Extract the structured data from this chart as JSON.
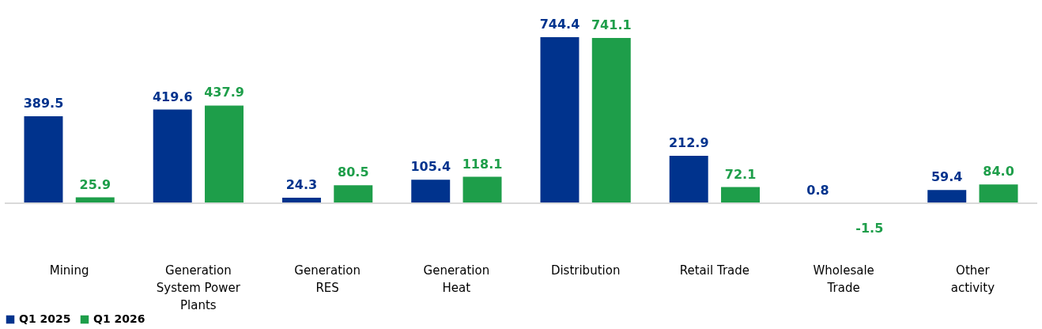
{
  "chart_data": {
    "type": "bar",
    "categories": [
      "Mining",
      "Generation System Power Plants",
      "Generation RES",
      "Generation Heat",
      "Distribution",
      "Retail Trade",
      "Wholesale Trade",
      "Other activity"
    ],
    "series": [
      {
        "name": "Q1 2025",
        "color": "#00338d",
        "values": [
          389.5,
          419.6,
          24.3,
          105.4,
          744.4,
          212.9,
          0.8,
          59.4
        ],
        "value_labels": [
          "389.5",
          "419.6",
          "24.3",
          "105.4",
          "744.4",
          "212.9",
          "0.8",
          "59.4"
        ]
      },
      {
        "name": "Q1 2026",
        "color": "#1e9e4a",
        "values": [
          25.9,
          437.9,
          80.5,
          118.1,
          741.1,
          72.1,
          -1.5,
          84.0
        ],
        "value_labels": [
          "25.9",
          "437.9",
          "80.5",
          "118.1",
          "741.1",
          "72.1",
          "-1.5",
          "84.0"
        ]
      }
    ],
    "legend": "bottom",
    "grid": false
  }
}
